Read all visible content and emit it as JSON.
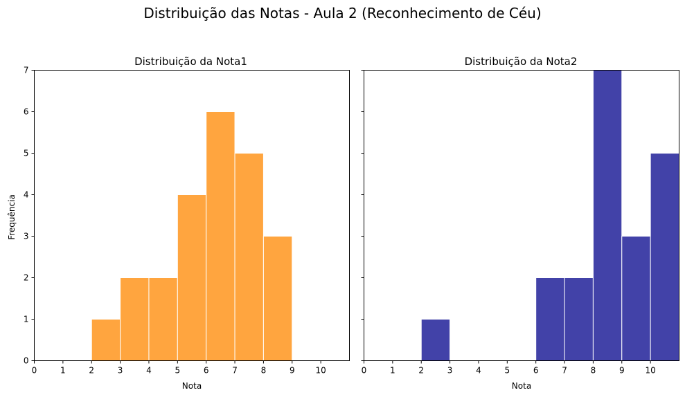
{
  "figure": {
    "suptitle": "Distribuição das Notas - Aula 2 (Reconhecimento de Céu)"
  },
  "chart_data": [
    {
      "type": "bar",
      "title": "Distribuição da Nota1",
      "xlabel": "Nota",
      "ylabel": "Frequência",
      "color": "#FFA53F",
      "edgecolor": "#ffffff",
      "bin_edges": [
        0,
        1,
        2,
        3,
        4,
        5,
        6,
        7,
        8,
        9,
        10,
        11
      ],
      "values": [
        0,
        0,
        1,
        2,
        2,
        4,
        6,
        5,
        3,
        0,
        0
      ],
      "xlim": [
        0,
        11
      ],
      "ylim": [
        0,
        7
      ],
      "xticks": [
        "0",
        "1",
        "2",
        "3",
        "4",
        "5",
        "6",
        "7",
        "8",
        "9",
        "10"
      ],
      "yticks": [
        "0",
        "1",
        "2",
        "3",
        "4",
        "5",
        "6",
        "7"
      ]
    },
    {
      "type": "bar",
      "title": "Distribuição da Nota2",
      "xlabel": "Nota",
      "ylabel": "",
      "color": "#4242A8",
      "edgecolor": "#ffffff",
      "bin_edges": [
        0,
        1,
        2,
        3,
        4,
        5,
        6,
        7,
        8,
        9,
        10,
        11
      ],
      "values": [
        0,
        0,
        1,
        0,
        0,
        0,
        2,
        2,
        7,
        3,
        5
      ],
      "xlim": [
        0,
        11
      ],
      "ylim": [
        0,
        7
      ],
      "xticks": [
        "0",
        "1",
        "2",
        "3",
        "4",
        "5",
        "6",
        "7",
        "8",
        "9",
        "10"
      ],
      "yticks": []
    }
  ]
}
